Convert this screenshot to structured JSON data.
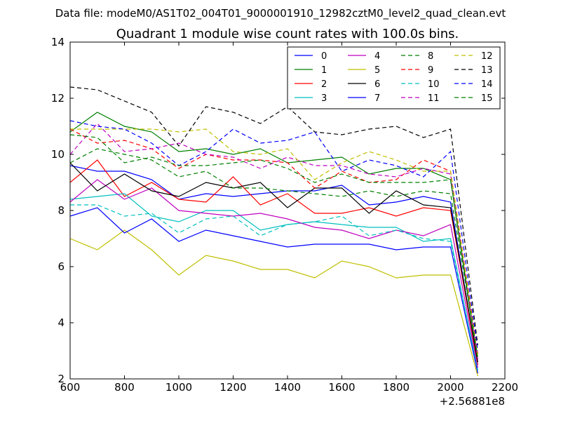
{
  "chart_data": {
    "type": "line",
    "suptitle": "Data file: modeM0/AS1T02_004T01_9000001910_12982cztM0_level2_quad_clean.evt",
    "title": "Quadrant 1 module wise count rates with 100.0s bins.",
    "xlabel": "",
    "ylabel": "",
    "x_offset_label": "+2.56881e8",
    "xlim": [
      600,
      2200
    ],
    "ylim": [
      2,
      14
    ],
    "xticks": [
      600,
      800,
      1000,
      1200,
      1400,
      1600,
      1800,
      2000,
      2200
    ],
    "yticks": [
      2,
      4,
      6,
      8,
      10,
      12,
      14
    ],
    "grid": false,
    "legend_position": "top-right",
    "x": [
      600,
      700,
      800,
      900,
      1000,
      1100,
      1200,
      1300,
      1400,
      1500,
      1600,
      1700,
      1800,
      1900,
      2000,
      2100
    ],
    "series": [
      {
        "name": "0",
        "color": "#0000ff",
        "style": "solid",
        "values": [
          9.6,
          9.4,
          9.4,
          9.1,
          8.4,
          8.6,
          8.5,
          8.6,
          8.7,
          8.7,
          8.9,
          8.2,
          8.3,
          8.5,
          8.3,
          2.5
        ]
      },
      {
        "name": "1",
        "color": "#008000",
        "style": "solid",
        "values": [
          10.8,
          11.5,
          11.0,
          10.8,
          10.1,
          10.2,
          10.0,
          10.2,
          9.7,
          9.8,
          9.9,
          9.3,
          9.5,
          9.5,
          9.1,
          2.6
        ]
      },
      {
        "name": "2",
        "color": "#ff0000",
        "style": "solid",
        "values": [
          9.0,
          9.8,
          8.5,
          9.0,
          8.4,
          8.3,
          9.2,
          8.2,
          8.6,
          7.9,
          7.9,
          8.1,
          7.8,
          8.1,
          8.0,
          2.5
        ]
      },
      {
        "name": "3",
        "color": "#00bfbf",
        "style": "solid",
        "values": [
          8.4,
          8.5,
          8.6,
          7.8,
          7.6,
          8.0,
          8.0,
          7.3,
          7.5,
          7.6,
          7.5,
          7.4,
          7.4,
          6.9,
          7.0,
          2.3
        ]
      },
      {
        "name": "4",
        "color": "#bf00bf",
        "style": "solid",
        "values": [
          8.3,
          9.1,
          8.4,
          8.8,
          8.0,
          7.9,
          7.8,
          7.9,
          7.7,
          7.4,
          7.3,
          7.0,
          7.3,
          7.1,
          7.5,
          2.4
        ]
      },
      {
        "name": "5",
        "color": "#bfbf00",
        "style": "solid",
        "values": [
          7.0,
          6.6,
          7.3,
          6.6,
          5.7,
          6.4,
          6.2,
          5.9,
          5.9,
          5.6,
          6.2,
          6.0,
          5.6,
          5.7,
          5.7,
          2.1
        ]
      },
      {
        "name": "6",
        "color": "#000000",
        "style": "solid",
        "values": [
          9.7,
          8.7,
          9.3,
          8.7,
          8.5,
          9.0,
          8.8,
          9.0,
          8.1,
          8.8,
          8.8,
          7.9,
          8.7,
          8.2,
          8.1,
          2.6
        ]
      },
      {
        "name": "7",
        "color": "#0000ff",
        "style": "solid",
        "values": [
          7.8,
          8.1,
          7.2,
          7.7,
          6.9,
          7.3,
          7.1,
          6.9,
          6.7,
          6.8,
          6.8,
          6.8,
          6.6,
          6.7,
          6.7,
          2.2
        ]
      },
      {
        "name": "8",
        "color": "#008000",
        "style": "dashed",
        "values": [
          9.7,
          10.2,
          10.0,
          9.8,
          9.2,
          9.4,
          8.8,
          8.8,
          8.7,
          8.6,
          8.5,
          8.7,
          8.5,
          8.7,
          8.6,
          2.8
        ]
      },
      {
        "name": "9",
        "color": "#ff0000",
        "style": "dashed",
        "values": [
          10.9,
          10.4,
          10.5,
          10.2,
          9.5,
          10.0,
          9.8,
          9.8,
          9.7,
          8.8,
          9.4,
          9.0,
          9.1,
          9.8,
          9.4,
          2.9
        ]
      },
      {
        "name": "10",
        "color": "#00bfbf",
        "style": "dashed",
        "values": [
          8.2,
          8.2,
          7.8,
          7.9,
          7.2,
          7.7,
          7.8,
          7.1,
          7.5,
          7.6,
          7.8,
          7.1,
          7.3,
          7.0,
          6.9,
          2.3
        ]
      },
      {
        "name": "11",
        "color": "#bf00bf",
        "style": "dashed",
        "values": [
          10.0,
          11.1,
          10.1,
          10.2,
          10.4,
          10.0,
          9.9,
          9.5,
          9.9,
          9.6,
          9.6,
          9.3,
          9.2,
          9.5,
          9.3,
          2.7
        ]
      },
      {
        "name": "12",
        "color": "#bfbf00",
        "style": "dashed",
        "values": [
          10.9,
          10.9,
          10.9,
          10.9,
          10.8,
          10.9,
          10.1,
          10.0,
          10.2,
          9.1,
          9.7,
          10.1,
          9.8,
          9.4,
          9.4,
          2.8
        ]
      },
      {
        "name": "13",
        "color": "#000000",
        "style": "dashed",
        "values": [
          12.4,
          12.3,
          11.9,
          11.5,
          10.3,
          11.7,
          11.5,
          11.1,
          11.7,
          10.8,
          10.7,
          10.9,
          11.0,
          10.6,
          10.9,
          3.2
        ]
      },
      {
        "name": "14",
        "color": "#0000ff",
        "style": "dashed",
        "values": [
          11.2,
          11.0,
          10.9,
          10.4,
          9.6,
          10.1,
          10.9,
          10.4,
          10.5,
          10.8,
          9.4,
          9.8,
          9.6,
          9.2,
          10.1,
          3.0
        ]
      },
      {
        "name": "15",
        "color": "#008000",
        "style": "dashed",
        "values": [
          10.7,
          10.6,
          9.7,
          9.9,
          9.6,
          9.6,
          9.7,
          9.8,
          9.5,
          9.0,
          9.3,
          9.0,
          9.0,
          9.0,
          9.1,
          2.7
        ]
      }
    ]
  }
}
